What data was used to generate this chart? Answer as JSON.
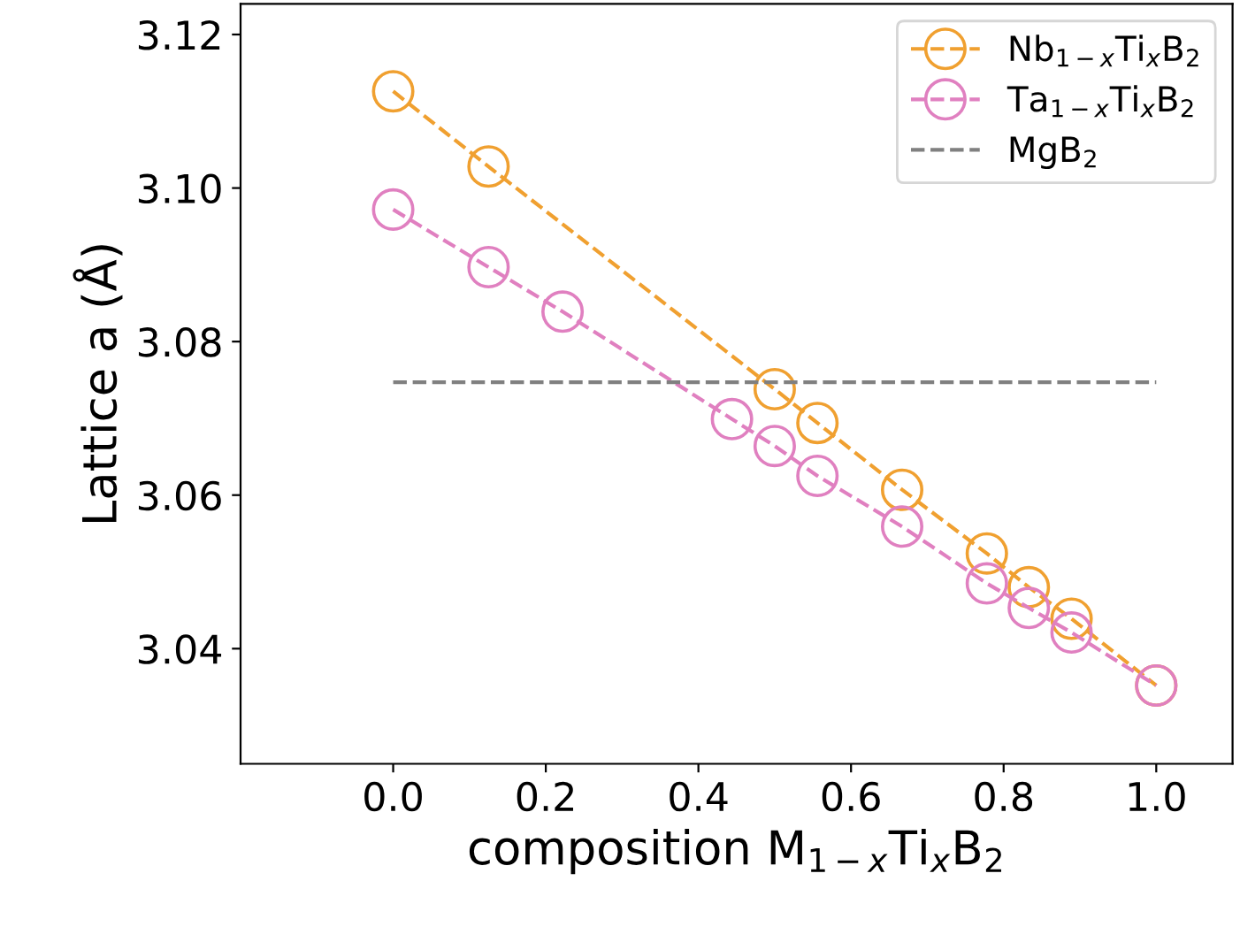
{
  "chart_data": {
    "type": "line",
    "xlabel": "composition M$_{1−x}$Ti$_{x}$B$_{2}$",
    "ylabel": "Lattice a (Å)",
    "xlim": [
      -0.2,
      1.1
    ],
    "ylim": [
      3.025,
      3.124
    ],
    "xticks": [
      {
        "value": 0,
        "label": "0.0"
      },
      0.2,
      0.4,
      0.6,
      0.8,
      {
        "value": 1,
        "label": "1.0"
      }
    ],
    "yticks": [
      3.04,
      3.06,
      3.08,
      {
        "value": 3.1,
        "label": "3.10"
      },
      3.12
    ],
    "grid": false,
    "legend": "top right",
    "line_style": "dashed",
    "series": [
      {
        "name": "Nb$_{1−x}$Ti$_{x}$B$_{2}$",
        "color": "#f0a030",
        "marker": "circle",
        "x": [
          0,
          0.125,
          0.5,
          0.556,
          0.667,
          0.778,
          0.833,
          0.889,
          1.0
        ],
        "values": [
          3.1126,
          3.1028,
          3.0738,
          3.0694,
          3.0607,
          3.0524,
          3.048,
          3.0439,
          3.0352
        ]
      },
      {
        "name": "Ta$_{1−x}$Ti$_{x}$B$_{2}$",
        "color": "#e080c0",
        "marker": "circle",
        "x": [
          0,
          0.125,
          0.222,
          0.444,
          0.5,
          0.556,
          0.667,
          0.778,
          0.833,
          0.889,
          1.0
        ],
        "values": [
          3.0972,
          3.0897,
          3.0839,
          3.0699,
          3.0664,
          3.0625,
          3.0559,
          3.0485,
          3.0453,
          3.0421,
          3.0352
        ]
      },
      {
        "name": "MgB$_{2}$",
        "color": "#808080",
        "marker": "none",
        "x": [
          0,
          1.0
        ],
        "values": [
          3.0747,
          3.0747
        ]
      }
    ]
  }
}
